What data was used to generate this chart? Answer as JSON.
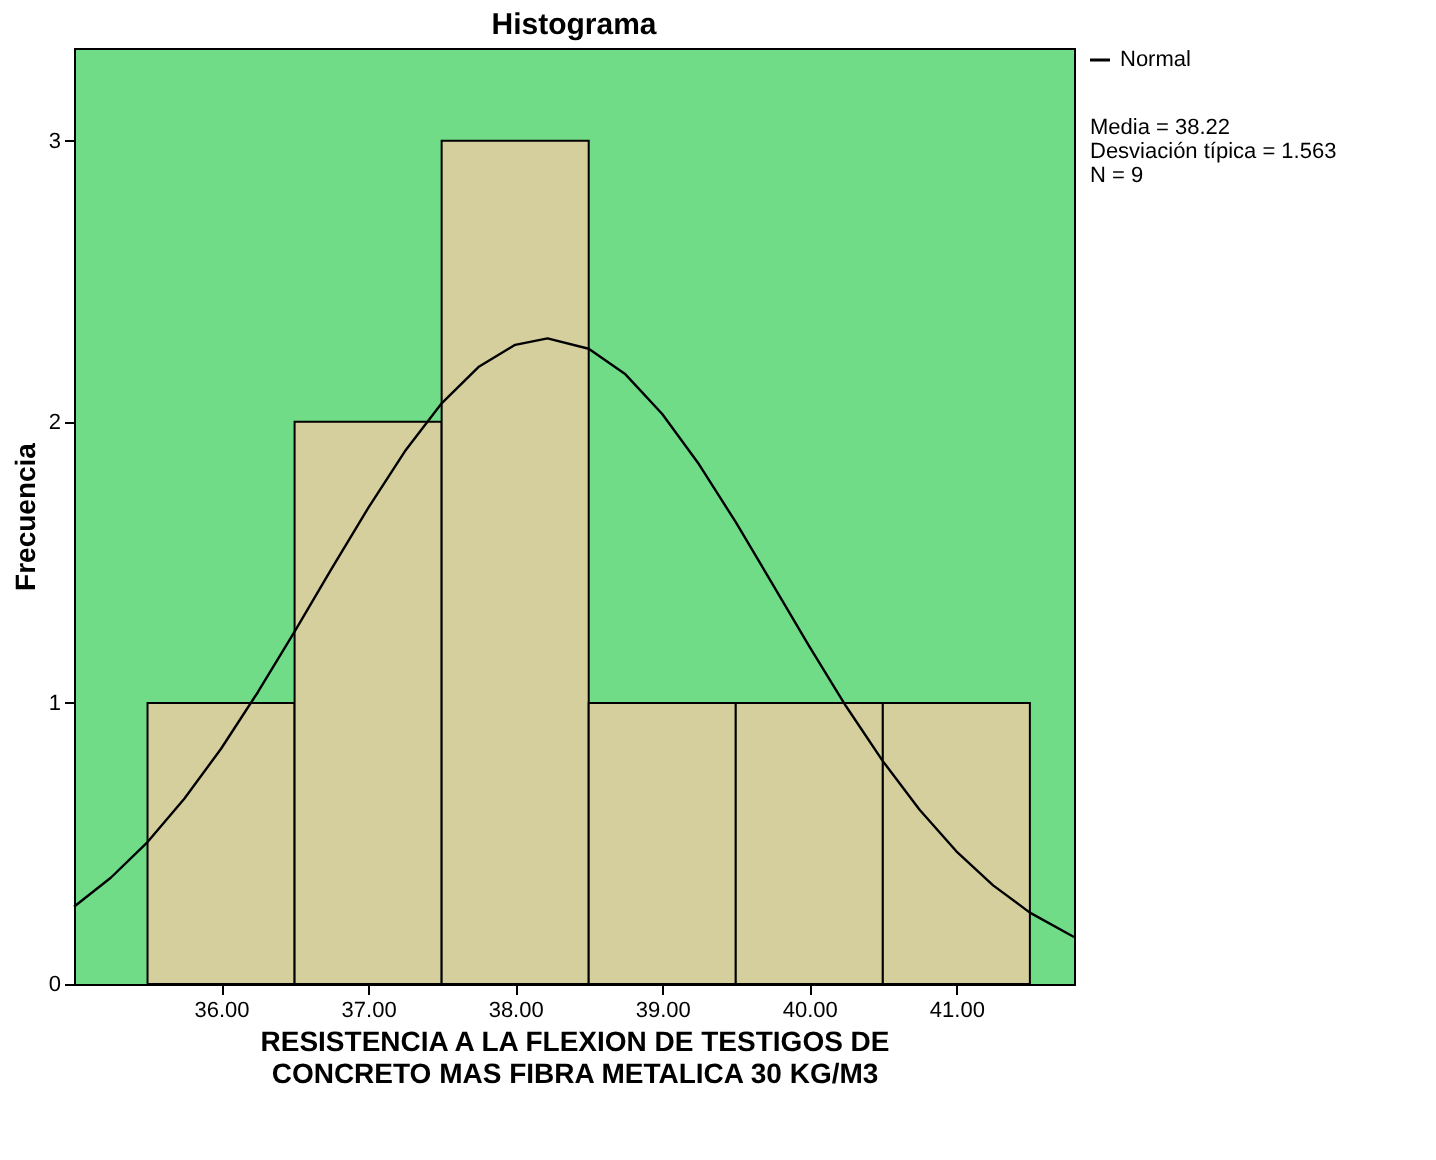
{
  "chart_data": {
    "type": "histogram",
    "title": "Histograma",
    "xlabel": "RESISTENCIA A LA FLEXION DE TESTIGOS DE\nCONCRETO MAS FIBRA METALICA 30 KG/M3",
    "ylabel": "Frecuencia",
    "bins": [
      35.5,
      36.5,
      37.5,
      38.5,
      39.5,
      40.5,
      41.5
    ],
    "values": [
      1,
      2,
      3,
      1,
      1,
      1
    ],
    "color": "#d5cf9e",
    "series": [
      {
        "name": "Normal",
        "type": "line",
        "color": "#000000",
        "x": [
          35.0,
          35.25,
          35.5,
          35.75,
          36.0,
          36.25,
          36.5,
          36.75,
          37.0,
          37.25,
          37.5,
          37.75,
          38.0,
          38.22,
          38.5,
          38.75,
          39.0,
          39.25,
          39.5,
          39.75,
          40.0,
          40.25,
          40.5,
          40.75,
          41.0,
          41.25,
          41.5,
          41.8
        ],
        "values": [
          0.275,
          0.378,
          0.505,
          0.659,
          0.837,
          1.038,
          1.254,
          1.476,
          1.693,
          1.895,
          2.066,
          2.195,
          2.274,
          2.297,
          2.26,
          2.169,
          2.028,
          1.849,
          1.643,
          1.423,
          1.201,
          0.988,
          0.793,
          0.62,
          0.472,
          0.351,
          0.254,
          0.167
        ]
      }
    ],
    "annotations": [
      "Media = 38.22",
      "Desviación típica = 1.563",
      "N = 9"
    ],
    "xlim": [
      35.0,
      41.8
    ],
    "ylim": [
      0,
      3.33
    ],
    "xticks": [
      {
        "value": 36,
        "label": "36.00"
      },
      {
        "value": 37,
        "label": "37.00"
      },
      {
        "value": 38,
        "label": "38.00"
      },
      {
        "value": 39,
        "label": "39.00"
      },
      {
        "value": 40,
        "label": "40.00"
      },
      {
        "value": 41,
        "label": "41.00"
      }
    ],
    "yticks": [
      0,
      1,
      2,
      3
    ],
    "grid": false,
    "legend": "top right",
    "line_style": "solid",
    "marker": "none"
  }
}
